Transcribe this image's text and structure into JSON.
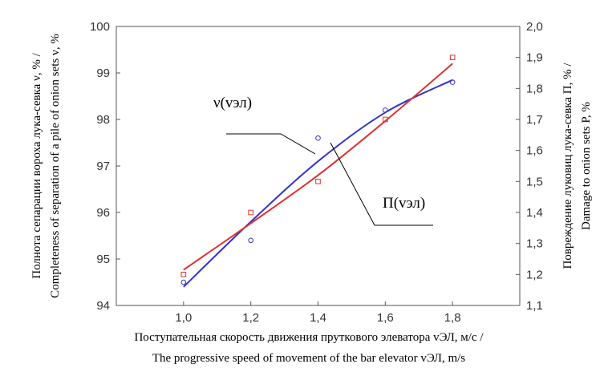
{
  "chart_data": {
    "type": "line",
    "x_ticks": [
      "1,0",
      "1,2",
      "1,4",
      "1,6",
      "1,8"
    ],
    "y_left_ticks": [
      "94",
      "95",
      "96",
      "97",
      "98",
      "99",
      "100"
    ],
    "y_right_ticks": [
      "1,1",
      "1,2",
      "1,3",
      "1,4",
      "1,5",
      "1,6",
      "1,7",
      "1,8",
      "1,9",
      "2,0"
    ],
    "xlim": [
      0.8,
      2.0
    ],
    "ylim_left": [
      94,
      100
    ],
    "ylim_right": [
      1.1,
      2.0
    ],
    "xlabel": [
      "Поступательная скорость движения пруткового элеватора vЭЛ, м/с /",
      "The progressive speed of movement of the bar elevator vЭЛ, m/s"
    ],
    "ylabel_left": [
      "Полнота сепарации вороха лука-севка ν, % /",
      "Completeness of separation of a pile of onion sets ν, %"
    ],
    "ylabel_right": [
      "Повреждение луковиц лука-севка П, % /",
      "Damage to onion sets P, %"
    ],
    "series": [
      {
        "name": "ν(vэл)",
        "axis": "left",
        "color": "#3333cc",
        "marker": "circle",
        "points": [
          [
            1.0,
            94.5
          ],
          [
            1.2,
            95.4
          ],
          [
            1.4,
            97.6
          ],
          [
            1.6,
            98.2
          ],
          [
            1.8,
            98.8
          ]
        ],
        "fit": [
          [
            1.0,
            94.4
          ],
          [
            1.2,
            95.8
          ],
          [
            1.4,
            97.1
          ],
          [
            1.6,
            98.15
          ],
          [
            1.8,
            98.85
          ]
        ]
      },
      {
        "name": "П(vэл)",
        "axis": "right",
        "color": "#dd3333",
        "marker": "square",
        "points": [
          [
            1.0,
            1.2
          ],
          [
            1.2,
            1.4
          ],
          [
            1.4,
            1.5
          ],
          [
            1.6,
            1.7
          ],
          [
            1.8,
            1.9
          ]
        ],
        "fit": [
          [
            1.0,
            1.215
          ],
          [
            1.2,
            1.365
          ],
          [
            1.4,
            1.52
          ],
          [
            1.6,
            1.695
          ],
          [
            1.8,
            1.88
          ]
        ]
      }
    ],
    "grid": false,
    "legend": "inline"
  }
}
